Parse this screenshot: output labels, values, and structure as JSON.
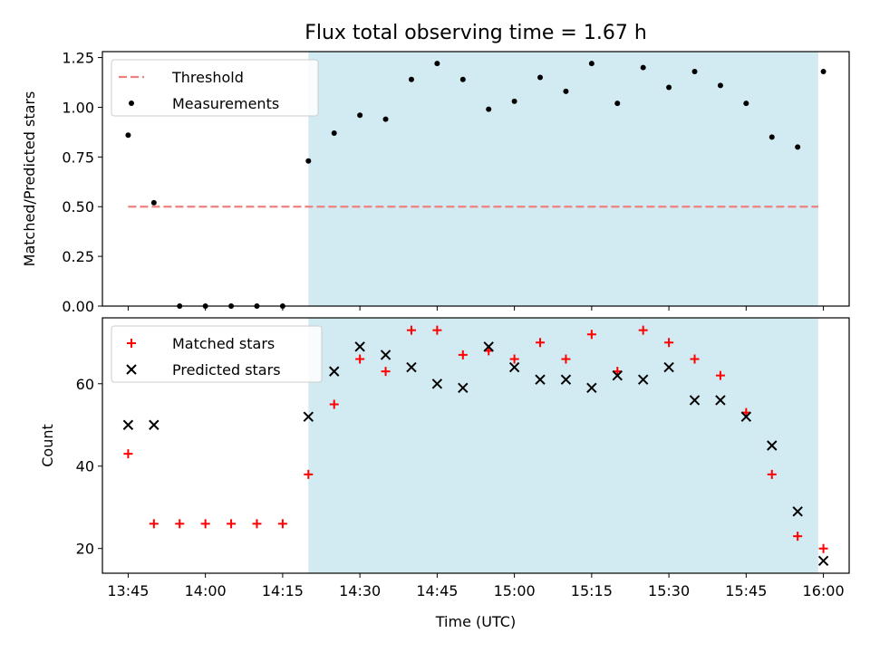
{
  "title": "Flux total observing time = 1.67 h",
  "colors": {
    "threshold": "#f08080",
    "shade": "#add8e6",
    "matched": "#ff0000",
    "predicted": "#000000",
    "points": "#000000"
  },
  "chart_data": [
    {
      "type": "scatter",
      "xlabel": "",
      "ylabel": "Matched/Predicted stars",
      "ylim": [
        0,
        1.28
      ],
      "yticks": [
        "0.00",
        "0.25",
        "0.50",
        "0.75",
        "1.00",
        "1.25"
      ],
      "shaded_x_range": [
        "14:20",
        "15:59"
      ],
      "legend": {
        "placement": "top-left",
        "entries": [
          "Threshold",
          "Measurements"
        ]
      },
      "threshold": {
        "name": "Threshold",
        "y": 0.5,
        "x": [
          "13:45",
          "15:59"
        ]
      },
      "series": [
        {
          "name": "Measurements",
          "x": [
            "13:45",
            "13:50",
            "13:55",
            "14:00",
            "14:05",
            "14:10",
            "14:15",
            "14:20",
            "14:25",
            "14:30",
            "14:35",
            "14:40",
            "14:45",
            "14:50",
            "14:55",
            "15:00",
            "15:05",
            "15:10",
            "15:15",
            "15:20",
            "15:25",
            "15:30",
            "15:35",
            "15:40",
            "15:45",
            "15:50",
            "15:55",
            "16:00"
          ],
          "y": [
            0.86,
            0.52,
            0,
            0,
            0,
            0,
            0,
            0.73,
            0.87,
            0.96,
            0.94,
            1.14,
            1.22,
            1.14,
            0.99,
            1.03,
            1.15,
            1.08,
            1.22,
            1.02,
            1.2,
            1.1,
            1.18,
            1.11,
            1.02,
            0.85,
            0.8,
            1.18
          ]
        }
      ]
    },
    {
      "type": "scatter",
      "xlabel": "Time (UTC)",
      "ylabel": "Count",
      "ylim": [
        14,
        76
      ],
      "yticks": [
        "20",
        "40",
        "60"
      ],
      "xticks": [
        "13:45",
        "14:00",
        "14:15",
        "14:30",
        "14:45",
        "15:00",
        "15:15",
        "15:30",
        "15:45",
        "16:00"
      ],
      "xlim": [
        "13:40",
        "16:05"
      ],
      "shaded_x_range": [
        "14:20",
        "15:59"
      ],
      "legend": {
        "placement": "top-left",
        "entries": [
          "Matched stars",
          "Predicted stars"
        ]
      },
      "series": [
        {
          "name": "Matched stars",
          "x": [
            "13:45",
            "13:50",
            "13:55",
            "14:00",
            "14:05",
            "14:10",
            "14:15",
            "14:20",
            "14:25",
            "14:30",
            "14:35",
            "14:40",
            "14:45",
            "14:50",
            "14:55",
            "15:00",
            "15:05",
            "15:10",
            "15:15",
            "15:20",
            "15:25",
            "15:30",
            "15:35",
            "15:40",
            "15:45",
            "15:50",
            "15:55",
            "16:00"
          ],
          "y": [
            43,
            26,
            26,
            26,
            26,
            26,
            26,
            38,
            55,
            66,
            63,
            73,
            73,
            67,
            68,
            66,
            70,
            66,
            72,
            63,
            73,
            70,
            66,
            62,
            53,
            38,
            23,
            20
          ]
        },
        {
          "name": "Predicted stars",
          "x": [
            "13:45",
            "13:50",
            "14:20",
            "14:25",
            "14:30",
            "14:35",
            "14:40",
            "14:45",
            "14:50",
            "14:55",
            "15:00",
            "15:05",
            "15:10",
            "15:15",
            "15:20",
            "15:25",
            "15:30",
            "15:35",
            "15:40",
            "15:45",
            "15:50",
            "15:55",
            "16:00"
          ],
          "y": [
            50,
            50,
            52,
            63,
            69,
            67,
            64,
            60,
            59,
            69,
            64,
            61,
            61,
            59,
            62,
            61,
            64,
            56,
            56,
            52,
            45,
            29,
            17
          ]
        }
      ]
    }
  ]
}
